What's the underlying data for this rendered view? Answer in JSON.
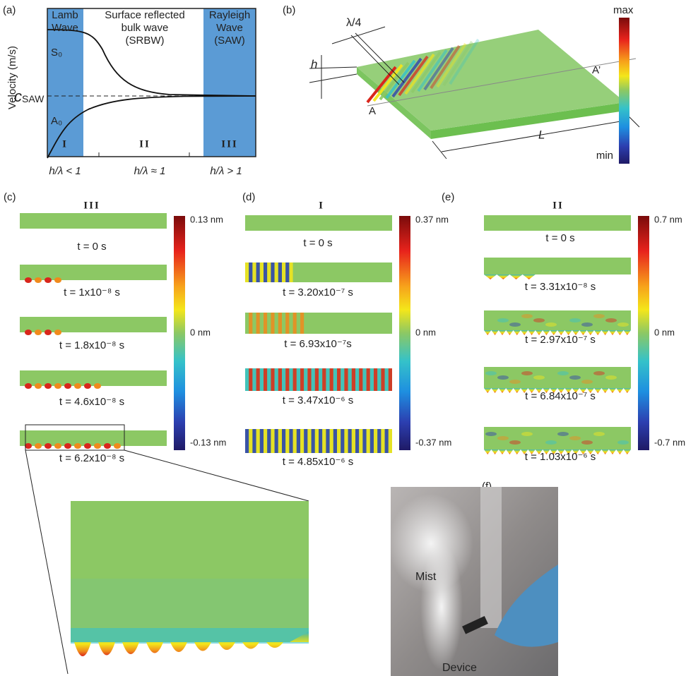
{
  "panel_a": {
    "label": "(a)",
    "y_axis_label": "Velocity (m/s)",
    "regions": [
      {
        "lines": [
          "Lamb",
          "Wave"
        ],
        "numeral": "I",
        "condition": "h/λ < 1"
      },
      {
        "lines": [
          "Surface reflected",
          "bulk wave",
          "(SRBW)"
        ],
        "numeral": "II",
        "condition": "h/λ ≈ 1"
      },
      {
        "lines": [
          "Rayleigh",
          "Wave",
          "(SAW)"
        ],
        "numeral": "III",
        "condition": "h/λ > 1"
      }
    ],
    "s0": "S₀",
    "a0": "A₀",
    "c_saw": {
      "symbol": "c",
      "subscript": "SAW"
    }
  },
  "panel_b": {
    "label": "(b)",
    "quarter_wavelength": "λ/4",
    "thickness": "h",
    "section_start": "A",
    "section_end": "A’",
    "length": "L",
    "colorbar_max": "max",
    "colorbar_min": "min"
  },
  "panel_c": {
    "label": "(c)",
    "regime": "III",
    "colorbar": [
      "0.13 nm",
      "0 nm",
      "-0.13 nm"
    ],
    "times": [
      "t = 0 s",
      "t = 1x10⁻⁸ s",
      "t = 1.8x10⁻⁸ s",
      "t = 4.6x10⁻⁸ s",
      "t = 6.2x10⁻⁸ s"
    ]
  },
  "panel_d": {
    "label": "(d)",
    "regime": "I",
    "colorbar": [
      "0.37 nm",
      "0 nm",
      "-0.37 nm"
    ],
    "times": [
      "t = 0 s",
      "t = 3.20x10⁻⁷ s",
      "t = 6.93x10⁻⁷s",
      "t = 3.47x10⁻⁶ s",
      "t = 4.85x10⁻⁶ s"
    ]
  },
  "panel_e": {
    "label": "(e)",
    "regime": "II",
    "colorbar": [
      "0.7 nm",
      "0 nm",
      "-0.7 nm"
    ],
    "times": [
      "t = 0 s",
      "t = 3.31x10⁻⁸ s",
      "t = 2.97x10⁻⁷ s",
      "t = 6.84x10⁻⁷ s",
      "t = 1.03x10⁻⁶ s"
    ]
  },
  "panel_f": {
    "label": "(f)",
    "mist": "Mist",
    "device": "Device"
  }
}
